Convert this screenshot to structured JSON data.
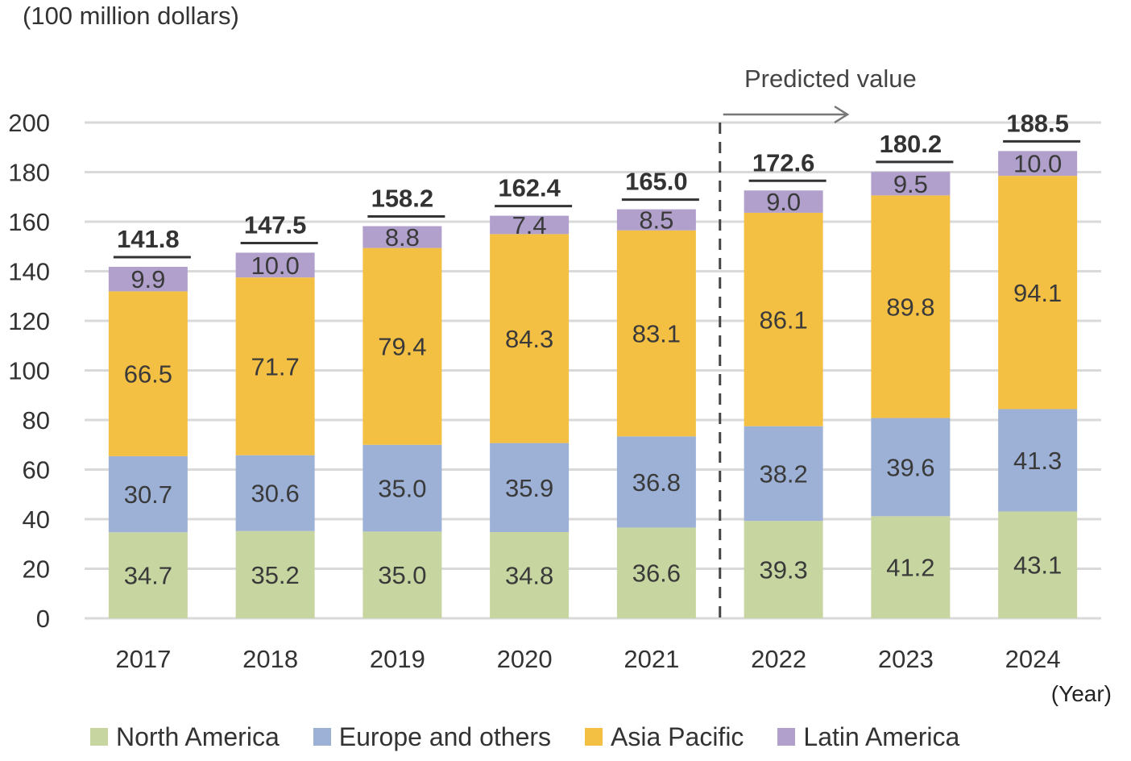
{
  "chart_data": {
    "type": "bar",
    "stacked": true,
    "unit_label": "(100 million dollars)",
    "xlabel": "(Year)",
    "ylabel": "",
    "ylim": [
      0,
      200
    ],
    "yticks": [
      "0",
      "20",
      "40",
      "60",
      "80",
      "100",
      "120",
      "140",
      "160",
      "180",
      "200"
    ],
    "grid": true,
    "legend_position": "bottom",
    "categories": [
      "2017",
      "2018",
      "2019",
      "2020",
      "2021",
      "2022",
      "2023",
      "2024"
    ],
    "series": [
      {
        "name": "North America",
        "color": "#c7d6a1",
        "values": [
          34.7,
          35.2,
          35.0,
          34.8,
          36.6,
          39.3,
          41.2,
          43.1
        ],
        "labels": [
          "34.7",
          "35.2",
          "35.0",
          "34.8",
          "36.6",
          "39.3",
          "41.2",
          "43.1"
        ]
      },
      {
        "name": "Europe and others",
        "color": "#9db1d6",
        "values": [
          30.7,
          30.6,
          35.0,
          35.9,
          36.8,
          38.2,
          39.6,
          41.3
        ],
        "labels": [
          "30.7",
          "30.6",
          "35.0",
          "35.9",
          "36.8",
          "38.2",
          "39.6",
          "41.3"
        ]
      },
      {
        "name": "Asia Pacific",
        "color": "#f4c043",
        "values": [
          66.5,
          71.7,
          79.4,
          84.3,
          83.1,
          86.1,
          89.8,
          94.1
        ],
        "labels": [
          "66.5",
          "71.7",
          "79.4",
          "84.3",
          "83.1",
          "86.1",
          "89.8",
          "94.1"
        ]
      },
      {
        "name": "Latin America",
        "color": "#b1a0cc",
        "values": [
          9.9,
          10.0,
          8.8,
          7.4,
          8.5,
          9.0,
          9.5,
          10.0
        ],
        "labels": [
          "9.9",
          "10.0",
          "8.8",
          "7.4",
          "8.5",
          "9.0",
          "9.5",
          "10.0"
        ]
      }
    ],
    "totals": [
      141.8,
      147.5,
      158.2,
      162.4,
      165.0,
      172.6,
      180.2,
      188.5
    ],
    "total_labels": [
      "141.8",
      "147.5",
      "158.2",
      "162.4",
      "165.0",
      "172.6",
      "180.2",
      "188.5"
    ],
    "annotation": "Predicted value",
    "prediction_starts_at": "2022"
  }
}
